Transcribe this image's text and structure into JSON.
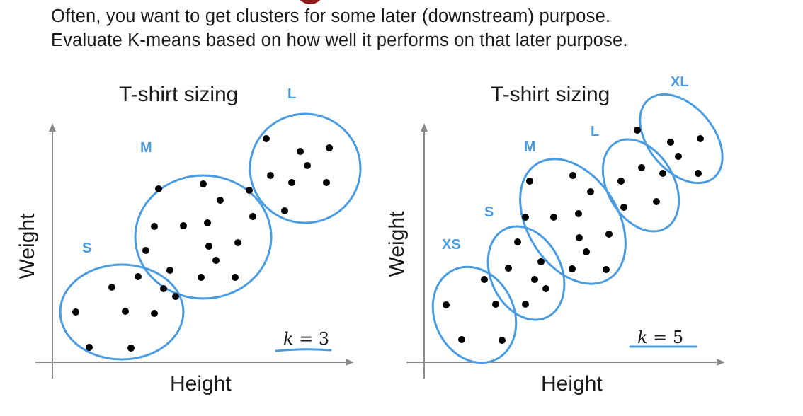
{
  "header": {
    "line1": "Often, you want to get clusters for some later (downstream) purpose.",
    "line2": "Evaluate K-means based on how well it performs on that later purpose."
  },
  "colors": {
    "cluster": "#4a9be0",
    "point": "#000000",
    "axis": "#8a8a8a",
    "text": "#1a1a1a"
  },
  "panels": [
    {
      "title": "T-shirt sizing",
      "x_axis_label": "Height",
      "y_axis_label": "Weight",
      "k_label": {
        "var": "k",
        "rest": " = 3"
      },
      "clusters": [
        {
          "label": "S"
        },
        {
          "label": "M"
        },
        {
          "label": "L"
        }
      ]
    },
    {
      "title": "T-shirt sizing",
      "x_axis_label": "Height",
      "y_axis_label": "Weight",
      "k_label": {
        "var": "k",
        "rest": " = 5"
      },
      "clusters": [
        {
          "label": "XS"
        },
        {
          "label": "S"
        },
        {
          "label": "M"
        },
        {
          "label": "L"
        },
        {
          "label": "XL"
        }
      ]
    }
  ]
}
